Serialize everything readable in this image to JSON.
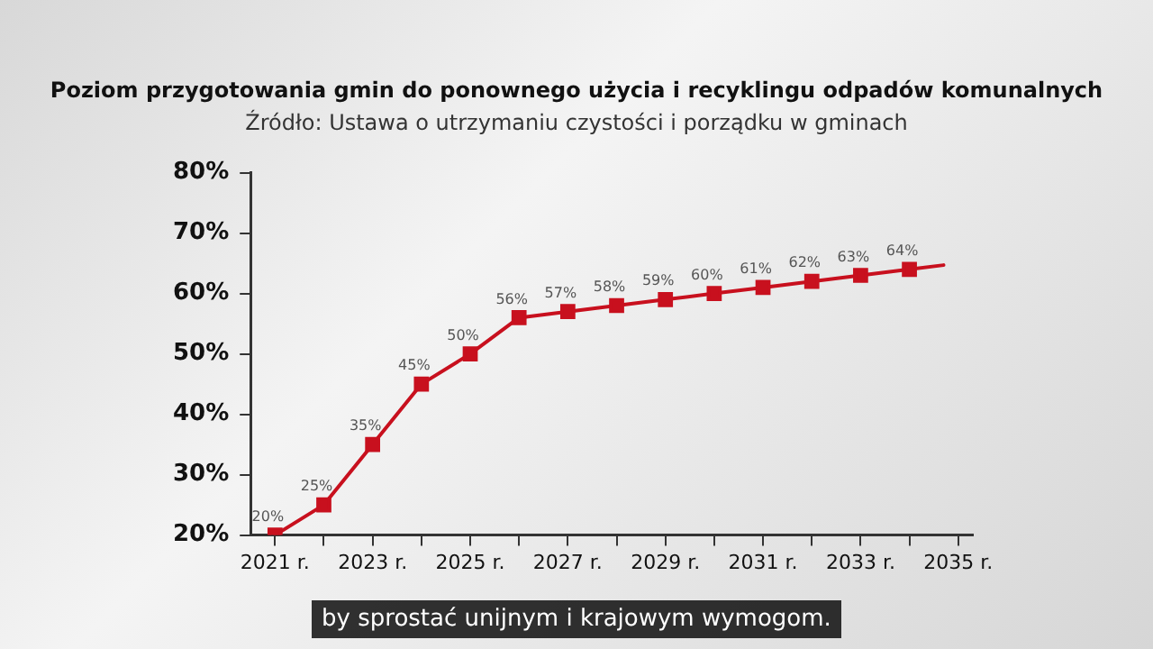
{
  "chart_data": {
    "type": "line",
    "title": "Poziom przygotowania gmin do ponownego użycia i recyklingu odpadów komunalnych",
    "subtitle": "Źródło: Ustawa o utrzymaniu czystości i porządku w gminach",
    "series": [
      {
        "color": "#c8101e",
        "marker": "square",
        "x": [
          2021,
          2022,
          2023,
          2024,
          2025,
          2026,
          2027,
          2028,
          2029,
          2030,
          2031,
          2032,
          2033,
          2034
        ],
        "values": [
          20,
          25,
          35,
          45,
          50,
          56,
          57,
          58,
          59,
          60,
          61,
          62,
          63,
          64
        ],
        "value_labels": [
          "20%",
          "25%",
          "35%",
          "45%",
          "50%",
          "56%",
          "57%",
          "58%",
          "59%",
          "60%",
          "61%",
          "62%",
          "63%",
          "64%"
        ]
      },
      {
        "color": "#c8101e",
        "marker": "none",
        "x": [
          2034,
          2034.7
        ],
        "values": [
          64,
          64.7
        ]
      }
    ],
    "xlim": [
      2020.5,
      2035.3
    ],
    "xticks": [
      {
        "value": 2021,
        "label": "2021 r."
      },
      {
        "value": 2022,
        "label": null
      },
      {
        "value": 2023,
        "label": "2023 r."
      },
      {
        "value": 2024,
        "label": null
      },
      {
        "value": 2025,
        "label": "2025 r."
      },
      {
        "value": 2026,
        "label": null
      },
      {
        "value": 2027,
        "label": "2027 r."
      },
      {
        "value": 2028,
        "label": null
      },
      {
        "value": 2029,
        "label": "2029 r."
      },
      {
        "value": 2030,
        "label": null
      },
      {
        "value": 2031,
        "label": "2031 r."
      },
      {
        "value": 2032,
        "label": null
      },
      {
        "value": 2033,
        "label": "2033 r."
      },
      {
        "value": 2034,
        "label": null
      },
      {
        "value": 2035,
        "label": "2035 r."
      }
    ],
    "ylim": [
      20,
      80
    ],
    "yticks": [
      {
        "value": 20,
        "label": "20%"
      },
      {
        "value": 30,
        "label": "30%"
      },
      {
        "value": 40,
        "label": "40%"
      },
      {
        "value": 50,
        "label": "50%"
      },
      {
        "value": 60,
        "label": "60%"
      },
      {
        "value": 70,
        "label": "70%"
      },
      {
        "value": 80,
        "label": "80%"
      }
    ],
    "grid": false,
    "legend": false,
    "line_style": "solid",
    "annotations": [
      "by sprostać unijnym i krajowym wymogom."
    ]
  }
}
